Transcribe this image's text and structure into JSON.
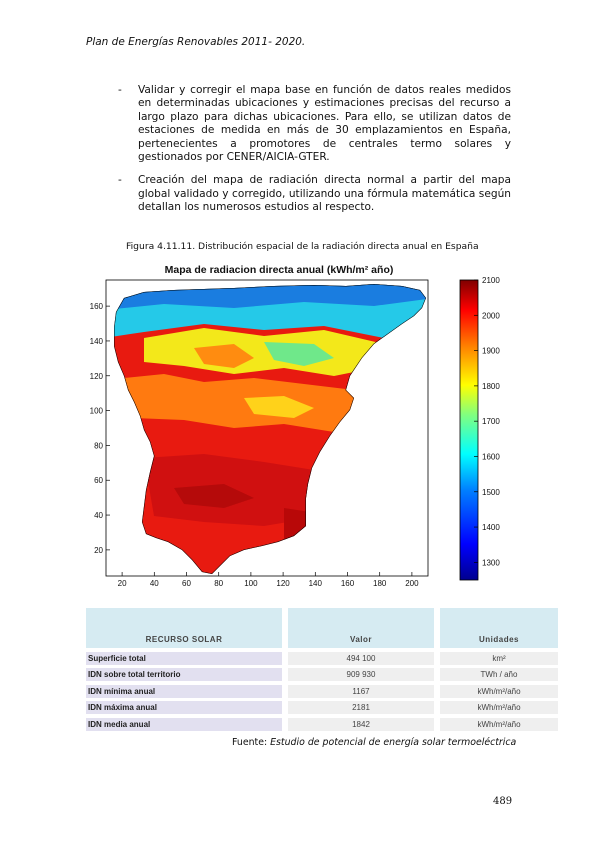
{
  "header": "Plan de Energías Renovables 2011- 2020.",
  "bullets": [
    "Validar y corregir el mapa base en función de datos reales medidos en determinadas ubicaciones y estimaciones precisas del recurso a largo plazo para dichas ubicaciones. Para ello, se utilizan datos de estaciones de medida en más de 30 emplazamientos en España, pertenecientes a promotores de centrales termo solares y gestionados por CENER/AICIA-GTER.",
    "Creación del mapa de radiación directa normal a partir del mapa global validado y corregido, utilizando una fórmula matemática según detallan los numerosos estudios al respecto."
  ],
  "figure_caption": "Figura 4.11.11. Distribución espacial de la radiación directa anual en España",
  "chart_data": {
    "type": "heatmap",
    "title": "Mapa de radiacion directa anual (kWh/m² año)",
    "x_ticks": [
      20,
      40,
      60,
      80,
      100,
      120,
      140,
      160,
      180,
      200
    ],
    "y_ticks": [
      20,
      40,
      60,
      80,
      100,
      120,
      140,
      160
    ],
    "xlim": [
      10,
      210
    ],
    "ylim": [
      5,
      175
    ],
    "colorbar_ticks": [
      1300,
      1400,
      1500,
      1600,
      1700,
      1800,
      1900,
      2000,
      2100
    ],
    "colorbar_range": [
      1250,
      2100
    ],
    "colormap": [
      "#00008f",
      "#0000ff",
      "#0080ff",
      "#00ffff",
      "#80ff80",
      "#ffff00",
      "#ff8000",
      "#ff0000",
      "#800000"
    ]
  },
  "table": {
    "headers": [
      "RECURSO SOLAR",
      "Valor",
      "Unidades"
    ],
    "rows": [
      {
        "label": "Superficie total",
        "value": "494 100",
        "unit": "km²"
      },
      {
        "label": "IDN sobre total territorio",
        "value": "909 930",
        "unit": "TWh / año"
      },
      {
        "label": "IDN mínima anual",
        "value": "1167",
        "unit": "kWh/m²/año"
      },
      {
        "label": "IDN máxima anual",
        "value": "2181",
        "unit": "kWh/m²/año"
      },
      {
        "label": "IDN media anual",
        "value": "1842",
        "unit": "kWh/m²/año"
      }
    ]
  },
  "source": {
    "prefix": "Fuente: ",
    "title": "Estudio de potencial de energía solar termoeléctrica"
  },
  "page_number": "489"
}
